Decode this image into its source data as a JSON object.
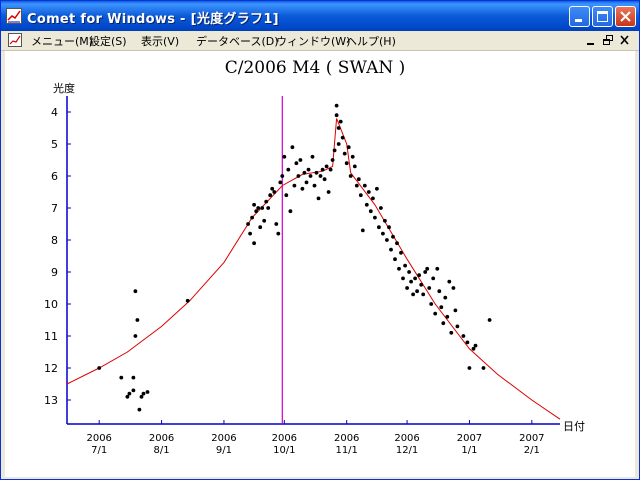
{
  "window": {
    "title": "Comet for Windows - [光度グラフ1]"
  },
  "menu": {
    "items": [
      "メニュー(M)",
      "設定(S)",
      "表示(V)",
      "データベース(D)",
      "ウィンドウ(W)",
      "ヘルプ(H)"
    ]
  },
  "chart_data": {
    "type": "scatter",
    "title": "C/2006 M4 ( SWAN )",
    "ylabel": "光度",
    "xlabel": "日付",
    "y_inverted": true,
    "ylim": [
      3.5,
      13.75
    ],
    "xlim": [
      "2006-06-15",
      "2007-02-15"
    ],
    "y_ticks": [
      "4",
      "5",
      "6",
      "7",
      "8",
      "9",
      "10",
      "11",
      "12",
      "13"
    ],
    "x_ticks": [
      {
        "year": "2006",
        "date": "7/1",
        "value": "2006-07-01"
      },
      {
        "year": "2006",
        "date": "8/1",
        "value": "2006-08-01"
      },
      {
        "year": "2006",
        "date": "9/1",
        "value": "2006-09-01"
      },
      {
        "year": "2006",
        "date": "10/1",
        "value": "2006-10-01"
      },
      {
        "year": "2006",
        "date": "11/1",
        "value": "2006-11-01"
      },
      {
        "year": "2006",
        "date": "12/1",
        "value": "2006-12-01"
      },
      {
        "year": "2007",
        "date": "1/1",
        "value": "2007-01-01"
      },
      {
        "year": "2007",
        "date": "2/1",
        "value": "2007-02-01"
      }
    ],
    "vertical_marker": {
      "date": "2006-09-30",
      "color": "#cc00cc"
    },
    "colors": {
      "points": "#000000",
      "fit_curve": "#dd0000",
      "axis": "#0000cc",
      "marker": "#cc00cc"
    },
    "series": [
      {
        "type": "scatter",
        "points": [
          [
            "2006-07-01",
            12.0
          ],
          [
            "2006-07-12",
            12.3
          ],
          [
            "2006-07-15",
            12.9
          ],
          [
            "2006-07-16",
            12.8
          ],
          [
            "2006-07-18",
            12.3
          ],
          [
            "2006-07-18",
            12.7
          ],
          [
            "2006-07-19",
            9.6
          ],
          [
            "2006-07-20",
            10.5
          ],
          [
            "2006-07-19",
            11.0
          ],
          [
            "2006-07-21",
            13.3
          ],
          [
            "2006-07-22",
            12.9
          ],
          [
            "2006-07-23",
            12.8
          ],
          [
            "2006-07-25",
            12.75
          ],
          [
            "2006-08-14",
            9.9
          ],
          [
            "2006-09-13",
            7.5
          ],
          [
            "2006-09-14",
            7.8
          ],
          [
            "2006-09-15",
            7.3
          ],
          [
            "2006-09-16",
            8.1
          ],
          [
            "2006-09-16",
            6.9
          ],
          [
            "2006-09-17",
            7.1
          ],
          [
            "2006-09-18",
            7.0
          ],
          [
            "2006-09-19",
            7.6
          ],
          [
            "2006-09-20",
            7.0
          ],
          [
            "2006-09-21",
            7.4
          ],
          [
            "2006-09-22",
            6.8
          ],
          [
            "2006-09-23",
            7.0
          ],
          [
            "2006-09-24",
            6.6
          ],
          [
            "2006-09-25",
            6.4
          ],
          [
            "2006-09-26",
            6.5
          ],
          [
            "2006-09-27",
            7.5
          ],
          [
            "2006-09-28",
            7.8
          ],
          [
            "2006-09-29",
            6.2
          ],
          [
            "2006-09-30",
            6.0
          ],
          [
            "2006-10-01",
            5.4
          ],
          [
            "2006-10-02",
            6.6
          ],
          [
            "2006-10-03",
            5.8
          ],
          [
            "2006-10-04",
            7.1
          ],
          [
            "2006-10-05",
            5.1
          ],
          [
            "2006-10-06",
            6.3
          ],
          [
            "2006-10-07",
            5.6
          ],
          [
            "2006-10-08",
            6.0
          ],
          [
            "2006-10-09",
            5.5
          ],
          [
            "2006-10-10",
            6.4
          ],
          [
            "2006-10-11",
            5.9
          ],
          [
            "2006-10-12",
            6.2
          ],
          [
            "2006-10-13",
            5.8
          ],
          [
            "2006-10-14",
            6.0
          ],
          [
            "2006-10-15",
            5.4
          ],
          [
            "2006-10-16",
            6.3
          ],
          [
            "2006-10-17",
            5.9
          ],
          [
            "2006-10-18",
            6.7
          ],
          [
            "2006-10-19",
            6.0
          ],
          [
            "2006-10-20",
            5.8
          ],
          [
            "2006-10-21",
            6.1
          ],
          [
            "2006-10-22",
            5.7
          ],
          [
            "2006-10-23",
            6.5
          ],
          [
            "2006-10-24",
            5.8
          ],
          [
            "2006-10-25",
            5.5
          ],
          [
            "2006-10-26",
            5.2
          ],
          [
            "2006-10-27",
            4.1
          ],
          [
            "2006-10-27",
            3.8
          ],
          [
            "2006-10-28",
            4.5
          ],
          [
            "2006-10-28",
            5.0
          ],
          [
            "2006-10-29",
            4.3
          ],
          [
            "2006-10-30",
            4.8
          ],
          [
            "2006-10-31",
            5.3
          ],
          [
            "2006-11-01",
            5.6
          ],
          [
            "2006-11-02",
            5.1
          ],
          [
            "2006-11-03",
            6.0
          ],
          [
            "2006-11-04",
            5.4
          ],
          [
            "2006-11-05",
            5.7
          ],
          [
            "2006-11-06",
            6.3
          ],
          [
            "2006-11-07",
            6.1
          ],
          [
            "2006-11-08",
            6.6
          ],
          [
            "2006-11-09",
            7.7
          ],
          [
            "2006-11-10",
            6.3
          ],
          [
            "2006-11-11",
            6.9
          ],
          [
            "2006-11-12",
            6.5
          ],
          [
            "2006-11-13",
            7.1
          ],
          [
            "2006-11-14",
            6.7
          ],
          [
            "2006-11-15",
            7.3
          ],
          [
            "2006-11-16",
            6.4
          ],
          [
            "2006-11-17",
            7.6
          ],
          [
            "2006-11-18",
            7.0
          ],
          [
            "2006-11-19",
            7.8
          ],
          [
            "2006-11-20",
            7.4
          ],
          [
            "2006-11-21",
            8.0
          ],
          [
            "2006-11-22",
            7.6
          ],
          [
            "2006-11-23",
            8.3
          ],
          [
            "2006-11-24",
            7.9
          ],
          [
            "2006-11-25",
            8.6
          ],
          [
            "2006-11-26",
            8.1
          ],
          [
            "2006-11-27",
            8.9
          ],
          [
            "2006-11-28",
            8.4
          ],
          [
            "2006-11-29",
            9.2
          ],
          [
            "2006-11-30",
            8.8
          ],
          [
            "2006-12-01",
            9.5
          ],
          [
            "2006-12-02",
            9.0
          ],
          [
            "2006-12-03",
            9.3
          ],
          [
            "2006-12-04",
            9.7
          ],
          [
            "2006-12-05",
            9.2
          ],
          [
            "2006-12-06",
            9.6
          ],
          [
            "2006-12-07",
            9.1
          ],
          [
            "2006-12-08",
            9.4
          ],
          [
            "2006-12-09",
            9.7
          ],
          [
            "2006-12-10",
            9.0
          ],
          [
            "2006-12-11",
            8.9
          ],
          [
            "2006-12-12",
            9.5
          ],
          [
            "2006-12-13",
            10.0
          ],
          [
            "2006-12-14",
            9.2
          ],
          [
            "2006-12-15",
            10.3
          ],
          [
            "2006-12-16",
            8.9
          ],
          [
            "2006-12-17",
            9.6
          ],
          [
            "2006-12-18",
            10.1
          ],
          [
            "2006-12-19",
            10.6
          ],
          [
            "2006-12-20",
            9.8
          ],
          [
            "2006-12-21",
            10.4
          ],
          [
            "2006-12-22",
            9.3
          ],
          [
            "2006-12-23",
            10.9
          ],
          [
            "2006-12-24",
            9.5
          ],
          [
            "2006-12-25",
            10.2
          ],
          [
            "2006-12-26",
            10.7
          ],
          [
            "2006-12-29",
            11.0
          ],
          [
            "2006-12-31",
            11.2
          ],
          [
            "2007-01-01",
            12.0
          ],
          [
            "2007-01-03",
            11.4
          ],
          [
            "2007-01-04",
            11.3
          ],
          [
            "2007-01-08",
            12.0
          ],
          [
            "2007-01-11",
            10.5
          ]
        ]
      },
      {
        "type": "line",
        "points": [
          [
            "2006-06-15",
            12.5
          ],
          [
            "2006-07-01",
            12.0
          ],
          [
            "2006-07-15",
            11.5
          ],
          [
            "2006-08-01",
            10.7
          ],
          [
            "2006-08-15",
            9.9
          ],
          [
            "2006-09-01",
            8.7
          ],
          [
            "2006-09-15",
            7.3
          ],
          [
            "2006-09-30",
            6.3
          ],
          [
            "2006-10-10",
            5.95
          ],
          [
            "2006-10-20",
            5.85
          ],
          [
            "2006-10-25",
            5.7
          ],
          [
            "2006-10-27",
            4.2
          ],
          [
            "2006-11-01",
            5.0
          ],
          [
            "2006-11-03",
            5.9
          ],
          [
            "2006-11-15",
            6.9
          ],
          [
            "2006-12-01",
            8.6
          ],
          [
            "2006-12-15",
            10.0
          ],
          [
            "2007-01-01",
            11.4
          ],
          [
            "2007-01-15",
            12.2
          ],
          [
            "2007-02-01",
            13.0
          ],
          [
            "2007-02-15",
            13.6
          ]
        ]
      }
    ]
  }
}
